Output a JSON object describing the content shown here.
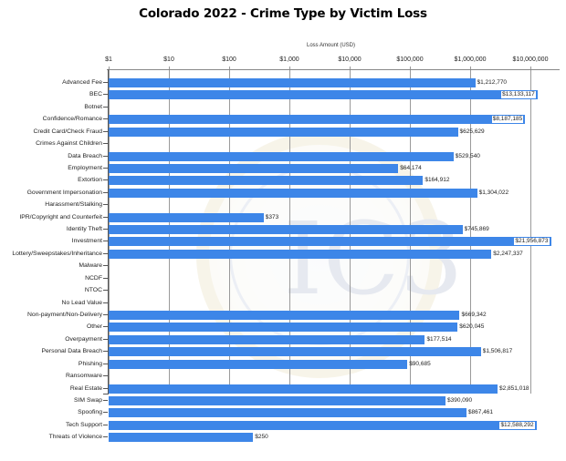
{
  "chart_data": {
    "type": "bar",
    "orientation": "horizontal",
    "title": "Colorado 2022 - Crime Type by Victim Loss",
    "xlabel": "Loss Amount (USD)",
    "ylabel": "",
    "xscale": "log",
    "xlim": [
      1,
      30000000
    ],
    "x_ticks": [
      "$1",
      "$10",
      "$100",
      "$1,000",
      "$10,000",
      "$100,000",
      "$1,000,000",
      "$10,000,000"
    ],
    "grid": "vertical gridlines at each decade",
    "legend": "none",
    "bar_color": "#3d86e8",
    "categories": [
      "Advanced Fee",
      "BEC",
      "Botnet",
      "Confidence/Romance",
      "Credit Card/Check Fraud",
      "Crimes Against Children",
      "Data Breach",
      "Employment",
      "Extortion",
      "Government Impersonation",
      "Harassment/Stalking",
      "IPR/Copyright and Counterfeit",
      "Identity Theft",
      "Investment",
      "Lottery/Sweepstakes/Inheritance",
      "Malware",
      "NCDF",
      "NTOC",
      "No Lead Value",
      "Non-payment/Non-Delivery",
      "Other",
      "Overpayment",
      "Personal Data Breach",
      "Phishing",
      "Ransomware",
      "Real Estate",
      "SIM Swap",
      "Spoofing",
      "Tech Support",
      "Threats of Violence"
    ],
    "values": [
      1212770,
      13133117,
      null,
      8187185,
      625629,
      null,
      529540,
      64174,
      164912,
      1304022,
      null,
      373,
      745869,
      21956873,
      2247337,
      null,
      null,
      null,
      null,
      669342,
      620045,
      177514,
      1506817,
      90685,
      null,
      2851018,
      390090,
      867461,
      12588292,
      250
    ],
    "value_labels": [
      "$1,212,770",
      "$13,133,117",
      "",
      "$8,187,185",
      "$625,629",
      "",
      "$529,540",
      "$64,174",
      "$164,912",
      "$1,304,022",
      "",
      "$373",
      "$745,869",
      "$21,956,873",
      "$2,247,337",
      "",
      "",
      "",
      "",
      "$669,342",
      "$620,045",
      "$177,514",
      "$1,506,817",
      "$90,685",
      "",
      "$2,851,018",
      "$390,090",
      "$867,461",
      "$12,588,292",
      "$250"
    ]
  },
  "watermark": {
    "description": "faded FBI Internet Crime Complaint Center (IC3) seal",
    "text": "IC3"
  }
}
